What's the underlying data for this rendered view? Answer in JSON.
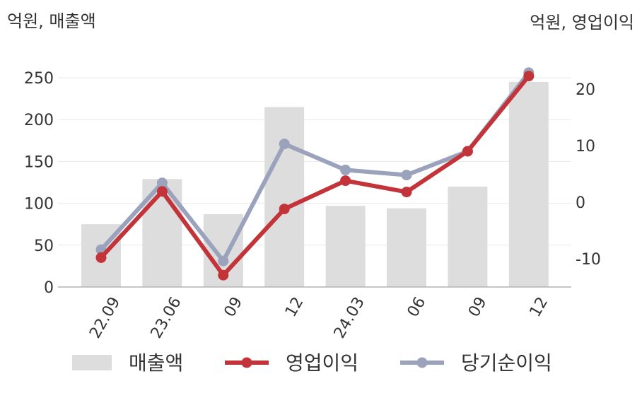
{
  "chart_data": {
    "type": "bar+line",
    "left_unit_label": "억원, 매출액",
    "right_unit_label": "억원, 영업이익",
    "categories": [
      "22.09",
      "23.06",
      "09",
      "12",
      "24.03",
      "06",
      "09",
      "12"
    ],
    "left_axis": {
      "ylim": [
        0,
        250
      ],
      "ticks": [
        0,
        50,
        100,
        150,
        200,
        250
      ]
    },
    "right_axis": {
      "ylim": [
        -15,
        25
      ],
      "ticks": [
        -10,
        0,
        10,
        20
      ]
    },
    "series": [
      {
        "name": "매출액",
        "kind": "bar",
        "axis": "left",
        "color": "#dddddd",
        "values": [
          75,
          129,
          87,
          215,
          97,
          94,
          120,
          245
        ]
      },
      {
        "name": "영업이익",
        "kind": "line",
        "axis": "right",
        "color": "#c3343a",
        "values": [
          -9.8,
          1.9,
          -12.9,
          -1.2,
          3.8,
          1.8,
          9.0,
          22.3
        ]
      },
      {
        "name": "당기순이익",
        "kind": "line",
        "axis": "right",
        "color": "#9aa3bb",
        "values": [
          -8.4,
          3.4,
          -10.4,
          10.3,
          5.7,
          4.8,
          9.0,
          22.9
        ]
      }
    ],
    "legend_position": "bottom",
    "grid": true
  }
}
